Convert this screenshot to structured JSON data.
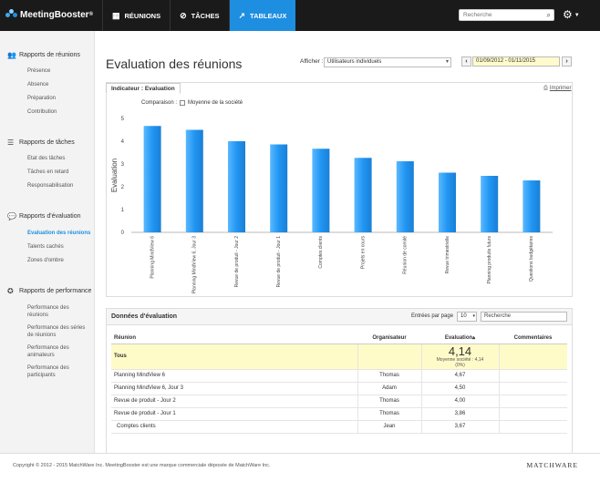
{
  "app": {
    "brand": "MeetingBooster",
    "brand_mark": "®"
  },
  "nav": {
    "items": [
      {
        "label": "RÉUNIONS",
        "icon": "grid-icon"
      },
      {
        "label": "TÂCHES",
        "icon": "check-circle-icon"
      },
      {
        "label": "TABLEAUX",
        "icon": "chart-icon"
      }
    ],
    "search_placeholder": "Recherche"
  },
  "sidebar": {
    "sections": [
      {
        "title": "Rapports de réunions",
        "icon": "people-icon",
        "items": [
          "Présence",
          "Absence",
          "Préparation",
          "Contribution"
        ]
      },
      {
        "title": "Rapports de tâches",
        "icon": "list-icon",
        "items": [
          "Etat des tâches",
          "Tâches en retard",
          "Responsabilisation"
        ]
      },
      {
        "title": "Rapports d'évaluation",
        "icon": "chat-icon",
        "items": [
          "Evaluation des réunions",
          "Talents cachés",
          "Zones d'ombre"
        ]
      },
      {
        "title": "Rapports de performance",
        "icon": "award-icon",
        "items": [
          "Performance des réunions",
          "Performance des séries de réunions",
          "Performance des animateurs",
          "Performance des participants"
        ]
      }
    ]
  },
  "page": {
    "title": "Evaluation des réunions",
    "filter_label": "Afficher :",
    "filter_value": "Utilisateurs individuels",
    "date_range": "01/09/2012 - 01/11/2015",
    "prev": "‹",
    "next": "›"
  },
  "chart_panel": {
    "tab": "Indicateur : Evaluation",
    "print": "Imprimer",
    "compare_label": "Comparaison :",
    "compare_option": "Moyenne de la société"
  },
  "chart_data": {
    "type": "bar",
    "ylabel": "Evaluation",
    "ylim": [
      0,
      5
    ],
    "yticks": [
      0,
      1,
      2,
      3,
      4,
      5
    ],
    "grid": false,
    "categories": [
      "Planning MindView 6",
      "Planning MindView 6, Jour 3",
      "Revue de produit - Jour 2",
      "Revue de produit - Jour 1",
      "Comptes clients",
      "Projets en cours",
      "Réunion de comité",
      "Revue trimestrielle",
      "Planning produits futurs",
      "Questions budgétaires"
    ],
    "values": [
      4.67,
      4.5,
      4.0,
      3.86,
      3.67,
      3.27,
      3.12,
      2.62,
      2.48,
      2.28
    ],
    "color": "#2196f3"
  },
  "data_panel": {
    "title": "Données d'évaluation",
    "per_page_label": "Entrées par page",
    "per_page_value": "10",
    "search_placeholder": "Recherche",
    "columns": [
      "Réunion",
      "Organisateur",
      "Evaluation",
      "Commentaires"
    ],
    "sort_indicator": "▴",
    "summary": {
      "label": "Tous",
      "value": "4,14",
      "note1": "Moyenne société : 4,14",
      "note2": "(0%)"
    },
    "rows": [
      {
        "reunion": "Planning MindView 6",
        "organisateur": "Thomas",
        "evaluation": "4,67",
        "commentaires": ""
      },
      {
        "reunion": "Planning MindView 6, Jour 3",
        "organisateur": "Adam",
        "evaluation": "4,50",
        "commentaires": ""
      },
      {
        "reunion": "Revue de produit - Jour 2",
        "organisateur": "Thomas",
        "evaluation": "4,00",
        "commentaires": ""
      },
      {
        "reunion": "Revue de produit - Jour 1",
        "organisateur": "Thomas",
        "evaluation": "3,86",
        "commentaires": ""
      },
      {
        "reunion": "Comptes clients",
        "organisateur": "Jean",
        "evaluation": "3,67",
        "commentaires": ""
      }
    ]
  },
  "footer": {
    "copyright": "Copyright © 2012 - 2015 MatchWare Inc. MeetingBooster est une marque commerciale déposée de MatchWare Inc.",
    "company": "MATCHWARE"
  }
}
